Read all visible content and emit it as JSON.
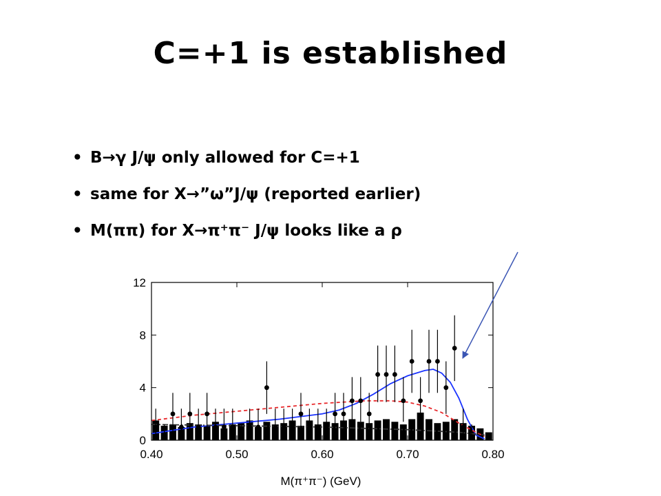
{
  "slide": {
    "title": "C=+1 is established",
    "bullet_marker": "•",
    "bullets": [
      "B→γ J/ψ only allowed for C=+1",
      "same for X→”ω”J/ψ (reported earlier)",
      "M(ππ) for X→π⁺π⁻ J/ψ looks like a ρ"
    ]
  },
  "chart_data": {
    "type": "scatter",
    "xlabel": "M(π⁺π⁻) (GeV)",
    "ylabel": "",
    "xlim": [
      0.4,
      0.8
    ],
    "ylim": [
      0,
      12
    ],
    "x_ticks": [
      "0.40",
      "0.50",
      "0.60",
      "0.70",
      "0.80"
    ],
    "y_ticks": [
      "0",
      "4",
      "8",
      "12"
    ],
    "grid": false,
    "series": [
      {
        "kind": "points_with_errors",
        "color": "#000000",
        "points": [
          {
            "x": 0.405,
            "y": 1,
            "lo": 0,
            "hi": 2.4
          },
          {
            "x": 0.415,
            "y": 0,
            "lo": 0,
            "hi": 1.2
          },
          {
            "x": 0.425,
            "y": 2,
            "lo": 0.7,
            "hi": 3.6
          },
          {
            "x": 0.435,
            "y": 1,
            "lo": 0,
            "hi": 2.4
          },
          {
            "x": 0.445,
            "y": 2,
            "lo": 0.7,
            "hi": 3.6
          },
          {
            "x": 0.455,
            "y": 1,
            "lo": 0,
            "hi": 2.4
          },
          {
            "x": 0.465,
            "y": 2,
            "lo": 0.7,
            "hi": 3.6
          },
          {
            "x": 0.475,
            "y": 1,
            "lo": 0,
            "hi": 2.4
          },
          {
            "x": 0.485,
            "y": 1,
            "lo": 0,
            "hi": 2.4
          },
          {
            "x": 0.495,
            "y": 1,
            "lo": 0,
            "hi": 2.4
          },
          {
            "x": 0.505,
            "y": 0,
            "lo": 0,
            "hi": 1.2
          },
          {
            "x": 0.515,
            "y": 1,
            "lo": 0,
            "hi": 2.4
          },
          {
            "x": 0.525,
            "y": 1,
            "lo": 0,
            "hi": 2.4
          },
          {
            "x": 0.535,
            "y": 4,
            "lo": 2.0,
            "hi": 6.0
          },
          {
            "x": 0.545,
            "y": 1,
            "lo": 0,
            "hi": 2.4
          },
          {
            "x": 0.555,
            "y": 1,
            "lo": 0,
            "hi": 2.4
          },
          {
            "x": 0.565,
            "y": 1,
            "lo": 0,
            "hi": 2.4
          },
          {
            "x": 0.575,
            "y": 2,
            "lo": 0.7,
            "hi": 3.6
          },
          {
            "x": 0.585,
            "y": 1,
            "lo": 0,
            "hi": 2.4
          },
          {
            "x": 0.595,
            "y": 1,
            "lo": 0,
            "hi": 2.4
          },
          {
            "x": 0.605,
            "y": 1,
            "lo": 0,
            "hi": 2.4
          },
          {
            "x": 0.615,
            "y": 2,
            "lo": 0.7,
            "hi": 3.6
          },
          {
            "x": 0.625,
            "y": 2,
            "lo": 0.7,
            "hi": 3.6
          },
          {
            "x": 0.635,
            "y": 3,
            "lo": 1.4,
            "hi": 4.8
          },
          {
            "x": 0.645,
            "y": 3,
            "lo": 1.4,
            "hi": 4.8
          },
          {
            "x": 0.655,
            "y": 2,
            "lo": 0.7,
            "hi": 3.6
          },
          {
            "x": 0.665,
            "y": 5,
            "lo": 2.9,
            "hi": 7.2
          },
          {
            "x": 0.675,
            "y": 5,
            "lo": 2.9,
            "hi": 7.2
          },
          {
            "x": 0.685,
            "y": 5,
            "lo": 2.9,
            "hi": 7.2
          },
          {
            "x": 0.695,
            "y": 3,
            "lo": 1.4,
            "hi": 4.8
          },
          {
            "x": 0.705,
            "y": 6,
            "lo": 3.6,
            "hi": 8.4
          },
          {
            "x": 0.715,
            "y": 3,
            "lo": 1.4,
            "hi": 4.8
          },
          {
            "x": 0.725,
            "y": 6,
            "lo": 3.6,
            "hi": 8.4
          },
          {
            "x": 0.735,
            "y": 6,
            "lo": 3.6,
            "hi": 8.4
          },
          {
            "x": 0.745,
            "y": 4,
            "lo": 2.0,
            "hi": 6.0
          },
          {
            "x": 0.755,
            "y": 7,
            "lo": 4.5,
            "hi": 9.5
          },
          {
            "x": 0.765,
            "y": 1,
            "lo": 0,
            "hi": 2.4
          },
          {
            "x": 0.775,
            "y": 0,
            "lo": 0,
            "hi": 1.2
          }
        ]
      },
      {
        "kind": "histogram",
        "fill": "#000000",
        "bin_width": 0.01,
        "x_start": 0.4,
        "values": [
          1.5,
          1.1,
          1.2,
          1.0,
          1.3,
          1.2,
          1.1,
          1.4,
          0.9,
          1.2,
          1.3,
          1.5,
          1.0,
          1.4,
          1.2,
          1.3,
          1.5,
          1.1,
          1.5,
          1.2,
          1.4,
          1.3,
          1.5,
          1.6,
          1.4,
          1.3,
          1.5,
          1.6,
          1.4,
          1.2,
          1.6,
          2.1,
          1.6,
          1.3,
          1.4,
          1.6,
          1.3,
          1.1,
          0.9,
          0.6
        ]
      },
      {
        "kind": "curve",
        "color": "#1a33ff",
        "style": "solid",
        "x": [
          0.4,
          0.45,
          0.5,
          0.55,
          0.6,
          0.62,
          0.64,
          0.66,
          0.68,
          0.7,
          0.72,
          0.73,
          0.74,
          0.75,
          0.76,
          0.77,
          0.78,
          0.79
        ],
        "y": [
          0.5,
          1.0,
          1.3,
          1.6,
          2.0,
          2.3,
          2.8,
          3.5,
          4.3,
          4.9,
          5.3,
          5.4,
          5.1,
          4.4,
          3.2,
          1.6,
          0.4,
          0.1
        ]
      },
      {
        "kind": "curve",
        "color": "#e8282b",
        "style": "dashed",
        "x": [
          0.4,
          0.45,
          0.5,
          0.55,
          0.6,
          0.65,
          0.68,
          0.7,
          0.72,
          0.74,
          0.76,
          0.78,
          0.79
        ],
        "y": [
          1.5,
          1.9,
          2.2,
          2.5,
          2.8,
          3.0,
          3.0,
          2.9,
          2.6,
          2.1,
          1.3,
          0.6,
          0.3
        ]
      },
      {
        "kind": "curve",
        "color": "#333333",
        "style": "dashdot",
        "x": [
          0.4,
          0.5,
          0.6,
          0.7,
          0.76,
          0.79
        ],
        "y": [
          1.2,
          1.1,
          1.0,
          0.8,
          0.6,
          0.4
        ]
      }
    ]
  }
}
